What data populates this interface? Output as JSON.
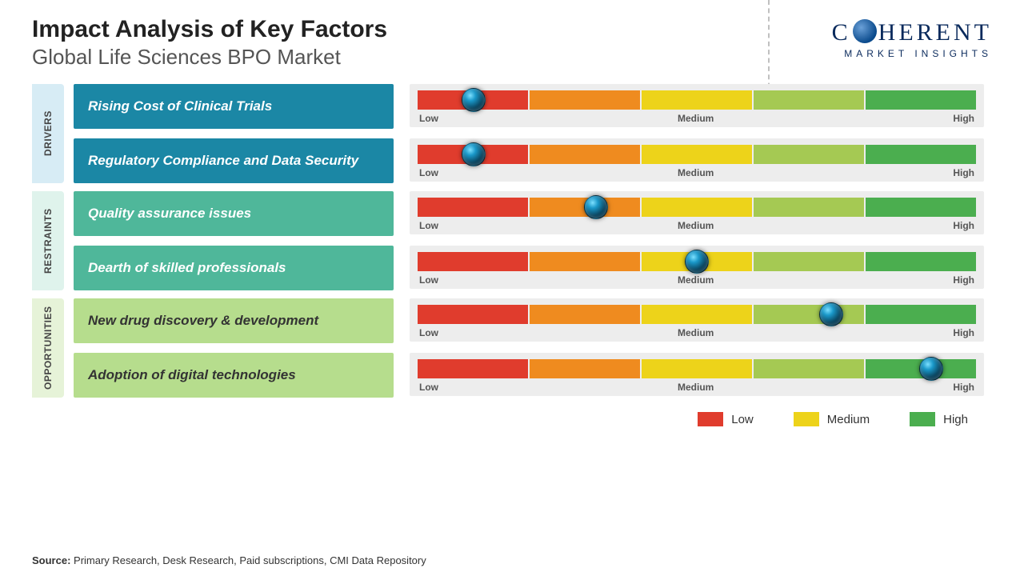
{
  "title": "Impact Analysis of Key Factors",
  "subtitle": "Global Life Sciences BPO Market",
  "logo": {
    "brand_pre": "C",
    "brand_post": "HERENT",
    "tagline": "MARKET INSIGHTS"
  },
  "scale": {
    "labels": {
      "low": "Low",
      "medium": "Medium",
      "high": "High"
    },
    "segments": [
      "#e03c2d",
      "#ef8b1f",
      "#edd31a",
      "#a5c953",
      "#4bae4f"
    ],
    "background": "#ededed",
    "tick_fontsize": 12
  },
  "legend": [
    {
      "color": "#e03c2d",
      "label": "Low"
    },
    {
      "color": "#edd31a",
      "label": "Medium"
    },
    {
      "color": "#4bae4f",
      "label": "High"
    }
  ],
  "groups": [
    {
      "name": "DRIVERS",
      "tab_bg": "#d7ecf5",
      "box_bg": "#1b87a5",
      "box_text": "#ffffff",
      "rows": [
        {
          "label": "Rising Cost of Clinical Trials",
          "value_pct": 10
        },
        {
          "label": "Regulatory Compliance and Data Security",
          "value_pct": 10
        }
      ]
    },
    {
      "name": "RESTRAINTS",
      "tab_bg": "#dff3ec",
      "box_bg": "#4fb79a",
      "box_text": "#ffffff",
      "rows": [
        {
          "label": "Quality assurance issues",
          "value_pct": 32
        },
        {
          "label": "Dearth of skilled professionals",
          "value_pct": 50
        }
      ]
    },
    {
      "name": "OPPORTUNITIES",
      "tab_bg": "#e6f3d8",
      "box_bg": "#b6dd8d",
      "box_text": "#333333",
      "rows": [
        {
          "label": "New drug discovery & development",
          "value_pct": 74
        },
        {
          "label": "Adoption of digital technologies",
          "value_pct": 92
        }
      ]
    }
  ],
  "source_label": "Source:",
  "source_text": "Primary Research, Desk Research, Paid subscriptions, CMI Data Repository",
  "typography": {
    "title_fontsize": 30,
    "subtitle_fontsize": 26,
    "label_fontsize": 17
  }
}
